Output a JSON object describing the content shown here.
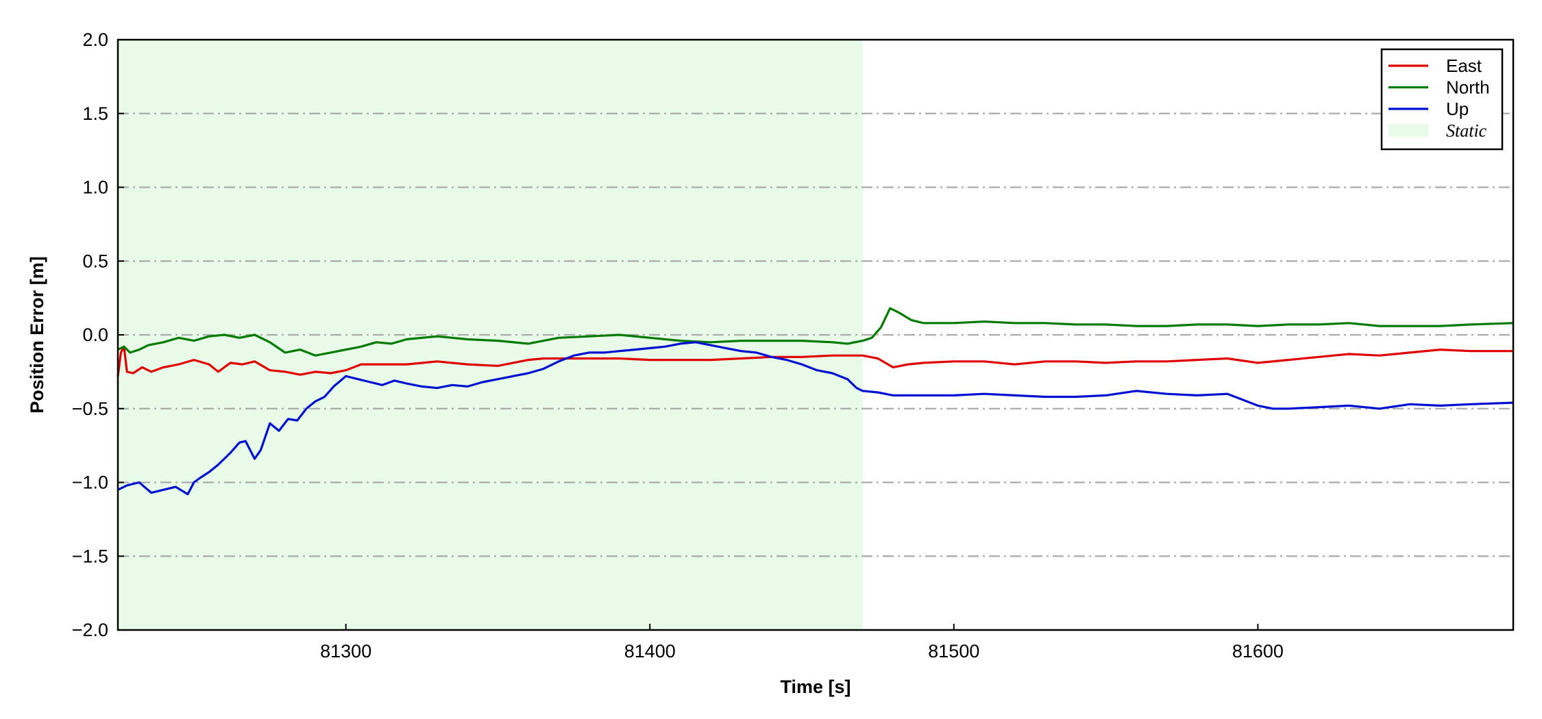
{
  "chart_data": {
    "type": "line",
    "xlabel": "Time [s]",
    "ylabel": "Position Error [m]",
    "xlim": [
      81225,
      81684
    ],
    "ylim": [
      -2.0,
      2.0
    ],
    "xticks": [
      81300,
      81400,
      81500,
      81600
    ],
    "xtick_labels": [
      "81300",
      "81400",
      "81500",
      "81600"
    ],
    "yticks": [
      2.0,
      1.5,
      1.0,
      0.5,
      0.0,
      -0.5,
      -1.0,
      -1.5,
      -2.0
    ],
    "ytick_labels": [
      "2.0",
      "1.5",
      "1.0",
      "0.5",
      "0.0",
      "−0.5",
      "−1.0",
      "−1.5",
      "−2.0"
    ],
    "grid": "horizontal dash-dot",
    "legend_position": "top-right",
    "shaded_region": {
      "label": "Static",
      "x_start": 81225,
      "x_end": 81470,
      "color": "#e8fbe8"
    },
    "series": [
      {
        "name": "East",
        "color": "#e00000",
        "x": [
          81225,
          81226,
          81227,
          81228,
          81230,
          81233,
          81236,
          81240,
          81245,
          81250,
          81255,
          81258,
          81262,
          81266,
          81270,
          81275,
          81280,
          81285,
          81290,
          81295,
          81300,
          81305,
          81310,
          81320,
          81330,
          81340,
          81350,
          81360,
          81365,
          81370,
          81380,
          81390,
          81400,
          81410,
          81420,
          81430,
          81440,
          81450,
          81460,
          81470,
          81475,
          81480,
          81485,
          81490,
          81500,
          81510,
          81520,
          81530,
          81540,
          81550,
          81560,
          81570,
          81580,
          81590,
          81600,
          81610,
          81620,
          81630,
          81640,
          81650,
          81660,
          81670,
          81684
        ],
        "y": [
          -0.28,
          -0.12,
          -0.08,
          -0.25,
          -0.26,
          -0.22,
          -0.25,
          -0.22,
          -0.2,
          -0.17,
          -0.2,
          -0.25,
          -0.19,
          -0.2,
          -0.18,
          -0.24,
          -0.25,
          -0.27,
          -0.25,
          -0.26,
          -0.24,
          -0.2,
          -0.2,
          -0.2,
          -0.18,
          -0.2,
          -0.21,
          -0.17,
          -0.16,
          -0.16,
          -0.16,
          -0.16,
          -0.17,
          -0.17,
          -0.17,
          -0.16,
          -0.15,
          -0.15,
          -0.14,
          -0.14,
          -0.16,
          -0.22,
          -0.2,
          -0.19,
          -0.18,
          -0.18,
          -0.2,
          -0.18,
          -0.18,
          -0.19,
          -0.18,
          -0.18,
          -0.17,
          -0.16,
          -0.19,
          -0.17,
          -0.15,
          -0.13,
          -0.14,
          -0.12,
          -0.1,
          -0.11,
          -0.11
        ]
      },
      {
        "name": "North",
        "color": "#007a00",
        "x": [
          81225,
          81227,
          81229,
          81232,
          81235,
          81240,
          81245,
          81250,
          81255,
          81260,
          81265,
          81270,
          81275,
          81280,
          81285,
          81290,
          81295,
          81300,
          81305,
          81310,
          81315,
          81320,
          81330,
          81340,
          81350,
          81360,
          81370,
          81380,
          81390,
          81400,
          81410,
          81420,
          81430,
          81440,
          81450,
          81460,
          81465,
          81470,
          81473,
          81476,
          81479,
          81482,
          81486,
          81490,
          81500,
          81510,
          81520,
          81530,
          81540,
          81550,
          81560,
          81570,
          81580,
          81590,
          81600,
          81610,
          81620,
          81630,
          81640,
          81650,
          81660,
          81670,
          81684
        ],
        "y": [
          -0.1,
          -0.08,
          -0.12,
          -0.1,
          -0.07,
          -0.05,
          -0.02,
          -0.04,
          -0.01,
          0.0,
          -0.02,
          0.0,
          -0.05,
          -0.12,
          -0.1,
          -0.14,
          -0.12,
          -0.1,
          -0.08,
          -0.05,
          -0.06,
          -0.03,
          -0.01,
          -0.03,
          -0.04,
          -0.06,
          -0.02,
          -0.01,
          0.0,
          -0.02,
          -0.04,
          -0.05,
          -0.04,
          -0.04,
          -0.04,
          -0.05,
          -0.06,
          -0.04,
          -0.02,
          0.05,
          0.18,
          0.15,
          0.1,
          0.08,
          0.08,
          0.09,
          0.08,
          0.08,
          0.07,
          0.07,
          0.06,
          0.06,
          0.07,
          0.07,
          0.06,
          0.07,
          0.07,
          0.08,
          0.06,
          0.06,
          0.06,
          0.07,
          0.08
        ]
      },
      {
        "name": "Up",
        "color": "#0010d0",
        "x": [
          81225,
          81228,
          81232,
          81236,
          81240,
          81244,
          81248,
          81250,
          81252,
          81255,
          81258,
          81262,
          81265,
          81267,
          81270,
          81272,
          81275,
          81278,
          81281,
          81284,
          81287,
          81290,
          81293,
          81296,
          81300,
          81304,
          81308,
          81312,
          81316,
          81320,
          81325,
          81330,
          81335,
          81340,
          81345,
          81350,
          81355,
          81360,
          81365,
          81370,
          81375,
          81380,
          81385,
          81390,
          81395,
          81400,
          81405,
          81410,
          81415,
          81420,
          81425,
          81430,
          81435,
          81440,
          81445,
          81450,
          81455,
          81460,
          81465,
          81468,
          81470,
          81475,
          81480,
          81490,
          81500,
          81510,
          81520,
          81530,
          81540,
          81550,
          81560,
          81570,
          81580,
          81590,
          81595,
          81600,
          81605,
          81610,
          81620,
          81630,
          81640,
          81650,
          81660,
          81670,
          81684
        ],
        "y": [
          -1.05,
          -1.02,
          -1.0,
          -1.07,
          -1.05,
          -1.03,
          -1.08,
          -1.0,
          -0.97,
          -0.93,
          -0.88,
          -0.8,
          -0.73,
          -0.72,
          -0.84,
          -0.78,
          -0.6,
          -0.65,
          -0.57,
          -0.58,
          -0.5,
          -0.45,
          -0.42,
          -0.35,
          -0.28,
          -0.3,
          -0.32,
          -0.34,
          -0.31,
          -0.33,
          -0.35,
          -0.36,
          -0.34,
          -0.35,
          -0.32,
          -0.3,
          -0.28,
          -0.26,
          -0.23,
          -0.18,
          -0.14,
          -0.12,
          -0.12,
          -0.11,
          -0.1,
          -0.09,
          -0.08,
          -0.06,
          -0.05,
          -0.07,
          -0.09,
          -0.11,
          -0.12,
          -0.15,
          -0.17,
          -0.2,
          -0.24,
          -0.26,
          -0.3,
          -0.36,
          -0.38,
          -0.39,
          -0.41,
          -0.41,
          -0.41,
          -0.4,
          -0.41,
          -0.42,
          -0.42,
          -0.41,
          -0.38,
          -0.4,
          -0.41,
          -0.4,
          -0.44,
          -0.48,
          -0.5,
          -0.5,
          -0.49,
          -0.48,
          -0.5,
          -0.47,
          -0.48,
          -0.47,
          -0.46
        ]
      }
    ]
  }
}
